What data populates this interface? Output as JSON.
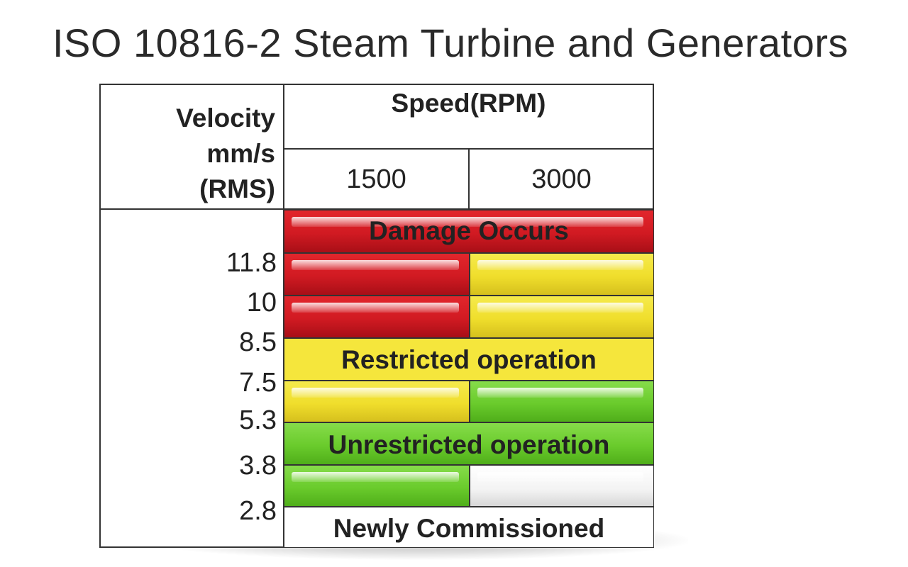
{
  "title": "ISO 10816-2 Steam Turbine and Generators",
  "header": {
    "velocity": [
      "Velocity",
      "mm/s",
      "(RMS)"
    ],
    "speed": "Speed(RPM)",
    "rpm": [
      "1500",
      "3000"
    ]
  },
  "velocity_ticks": [
    "11.8",
    "10",
    "8.5",
    "7.5",
    "5.3",
    "3.8",
    "2.8"
  ],
  "zones": {
    "damage": "Damage Occurs",
    "restricted": "Restricted operation",
    "unrestricted": "Unrestricted operation",
    "newly": "Newly Commissioned"
  },
  "colors": {
    "damage": "#d11a22",
    "restricted": "#f0de2c",
    "unrestricted": "#6acb2c",
    "newly": "#ffffff"
  }
}
